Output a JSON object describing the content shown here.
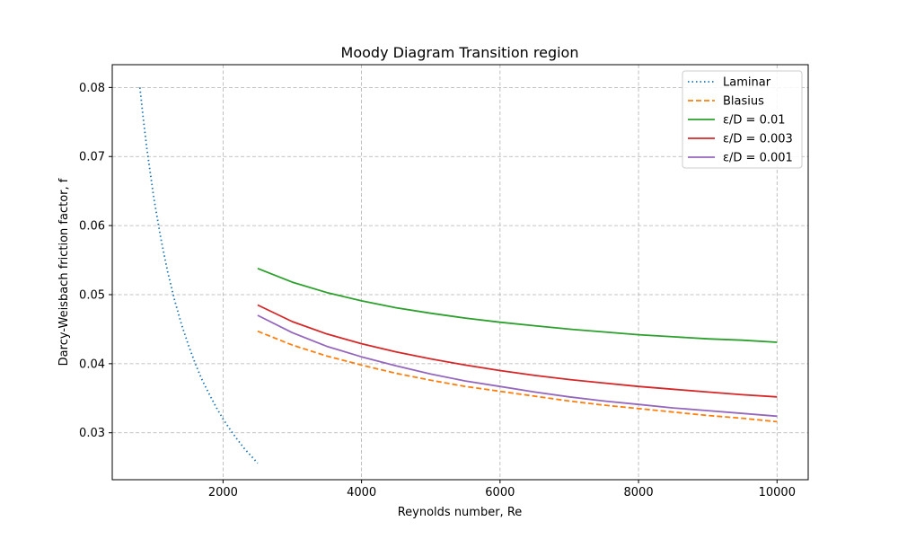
{
  "chart_data": {
    "type": "line",
    "title": "Moody Diagram Transition region",
    "xlabel": "Reynolds number, Re",
    "ylabel": "Darcy-Weisbach friction factor, f",
    "xlim": [
      400,
      10450
    ],
    "ylim": [
      0.0232,
      0.0833
    ],
    "xticks": [
      2000,
      4000,
      6000,
      8000,
      10000
    ],
    "yticks": [
      0.03,
      0.04,
      0.05,
      0.06,
      0.07,
      0.08
    ],
    "xtick_labels": [
      "2000",
      "4000",
      "6000",
      "8000",
      "10000"
    ],
    "ytick_labels": [
      "0.03",
      "0.04",
      "0.05",
      "0.06",
      "0.07",
      "0.08"
    ],
    "grid": true,
    "legend_position": "top-right",
    "series": [
      {
        "name": "Laminar",
        "color": "#1f77b4",
        "style": "dotted",
        "x": [
          800,
          850,
          900,
          1000,
          1100,
          1200,
          1300,
          1400,
          1500,
          1600,
          1700,
          1800,
          1900,
          2000,
          2100,
          2200,
          2300,
          2400,
          2500
        ],
        "y": [
          0.08,
          0.0753,
          0.0711,
          0.064,
          0.0582,
          0.0533,
          0.0492,
          0.0457,
          0.0427,
          0.04,
          0.0376,
          0.0356,
          0.0337,
          0.032,
          0.0305,
          0.0291,
          0.0278,
          0.0267,
          0.0256
        ]
      },
      {
        "name": "Blasius",
        "color": "#ff7f0e",
        "style": "dashed",
        "x": [
          2500,
          3000,
          3500,
          4000,
          4500,
          5000,
          5500,
          6000,
          6500,
          7000,
          7500,
          8000,
          8500,
          9000,
          9500,
          10000
        ],
        "y": [
          0.0447,
          0.0427,
          0.0411,
          0.0398,
          0.0386,
          0.0376,
          0.0367,
          0.036,
          0.0353,
          0.0346,
          0.034,
          0.0335,
          0.033,
          0.0325,
          0.0321,
          0.0316
        ]
      },
      {
        "name": "ε/D = 0.01",
        "color": "#2ca02c",
        "style": "solid",
        "x": [
          2500,
          3000,
          3500,
          4000,
          4500,
          5000,
          5500,
          6000,
          6500,
          7000,
          7500,
          8000,
          8500,
          9000,
          9500,
          10000
        ],
        "y": [
          0.0538,
          0.0518,
          0.0503,
          0.0491,
          0.0481,
          0.0473,
          0.0466,
          0.046,
          0.0455,
          0.045,
          0.0446,
          0.0442,
          0.0439,
          0.0436,
          0.0434,
          0.0431
        ]
      },
      {
        "name": "ε/D = 0.003",
        "color": "#d62728",
        "style": "solid",
        "x": [
          2500,
          3000,
          3500,
          4000,
          4500,
          5000,
          5500,
          6000,
          6500,
          7000,
          7500,
          8000,
          8500,
          9000,
          9500,
          10000
        ],
        "y": [
          0.0485,
          0.0461,
          0.0443,
          0.0429,
          0.0417,
          0.0407,
          0.0398,
          0.039,
          0.0383,
          0.0377,
          0.0372,
          0.0367,
          0.0363,
          0.0359,
          0.0355,
          0.0352
        ]
      },
      {
        "name": "ε/D = 0.001",
        "color": "#9467bd",
        "style": "solid",
        "x": [
          2500,
          3000,
          3500,
          4000,
          4500,
          5000,
          5500,
          6000,
          6500,
          7000,
          7500,
          8000,
          8500,
          9000,
          9500,
          10000
        ],
        "y": [
          0.047,
          0.0445,
          0.0425,
          0.041,
          0.0397,
          0.0385,
          0.0375,
          0.0367,
          0.0359,
          0.0352,
          0.0346,
          0.0341,
          0.0336,
          0.0332,
          0.0328,
          0.0324
        ]
      }
    ]
  }
}
